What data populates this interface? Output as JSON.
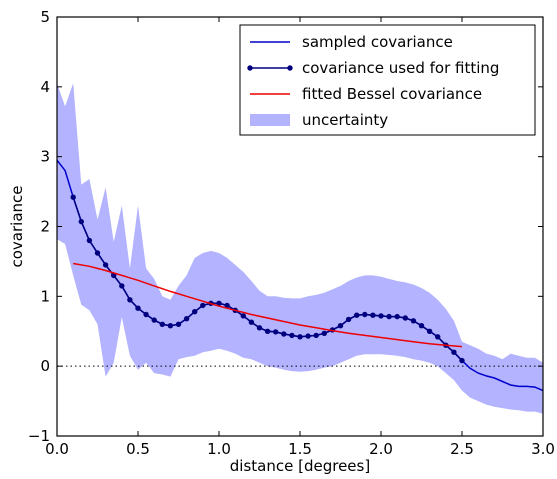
{
  "chart_data": {
    "type": "line",
    "title": "",
    "xlabel": "distance [degrees]",
    "ylabel": "covariance",
    "xlim": [
      0.0,
      3.0
    ],
    "ylim": [
      -1,
      5
    ],
    "xticks": [
      "0.0",
      "0.5",
      "1.0",
      "1.5",
      "2.0",
      "2.5",
      "3.0"
    ],
    "yticks": [
      "−1",
      "0",
      "1",
      "2",
      "3",
      "4",
      "5"
    ],
    "grid": false,
    "legend_position": "top-right",
    "reference_line": {
      "y": 0,
      "style": "dotted",
      "color": "#000000"
    },
    "colors": {
      "sampled": "#0000cc",
      "fitting": "#00007f",
      "bessel": "#ee0000",
      "uncertainty": "#b3b3ff"
    },
    "legend": [
      {
        "key": "sampled",
        "label": "sampled covariance"
      },
      {
        "key": "fitting",
        "label": "covariance used for fitting"
      },
      {
        "key": "bessel",
        "label": "fitted Bessel covariance"
      },
      {
        "key": "uncertainty",
        "label": "uncertainty"
      }
    ],
    "series": {
      "sampled": {
        "name": "sampled covariance",
        "x": [
          0.0,
          0.05,
          0.1,
          0.15,
          0.2,
          0.25,
          0.3,
          0.35,
          0.4,
          0.45,
          0.5,
          0.55,
          0.6,
          0.65,
          0.7,
          0.75,
          0.8,
          0.85,
          0.9,
          0.95,
          1.0,
          1.05,
          1.1,
          1.15,
          1.2,
          1.25,
          1.3,
          1.35,
          1.4,
          1.45,
          1.5,
          1.55,
          1.6,
          1.65,
          1.7,
          1.75,
          1.8,
          1.85,
          1.9,
          1.95,
          2.0,
          2.05,
          2.1,
          2.15,
          2.2,
          2.25,
          2.3,
          2.35,
          2.4,
          2.45,
          2.5,
          2.55,
          2.6,
          2.65,
          2.7,
          2.75,
          2.8,
          2.85,
          2.9,
          2.95,
          3.0
        ],
        "y": [
          2.95,
          2.8,
          2.42,
          2.07,
          1.8,
          1.62,
          1.45,
          1.3,
          1.15,
          0.95,
          0.83,
          0.74,
          0.66,
          0.6,
          0.58,
          0.6,
          0.68,
          0.78,
          0.87,
          0.9,
          0.9,
          0.87,
          0.8,
          0.72,
          0.63,
          0.55,
          0.5,
          0.49,
          0.46,
          0.44,
          0.42,
          0.43,
          0.44,
          0.47,
          0.52,
          0.58,
          0.67,
          0.73,
          0.74,
          0.73,
          0.72,
          0.71,
          0.71,
          0.69,
          0.65,
          0.58,
          0.5,
          0.42,
          0.3,
          0.2,
          0.08,
          -0.03,
          -0.1,
          -0.14,
          -0.17,
          -0.22,
          -0.27,
          -0.29,
          -0.29,
          -0.3,
          -0.35
        ]
      },
      "fitting": {
        "name": "covariance used for fitting",
        "x": [
          0.1,
          0.15,
          0.2,
          0.25,
          0.3,
          0.35,
          0.4,
          0.45,
          0.5,
          0.55,
          0.6,
          0.65,
          0.7,
          0.75,
          0.8,
          0.85,
          0.9,
          0.95,
          1.0,
          1.05,
          1.1,
          1.15,
          1.2,
          1.25,
          1.3,
          1.35,
          1.4,
          1.45,
          1.5,
          1.55,
          1.6,
          1.65,
          1.7,
          1.75,
          1.8,
          1.85,
          1.9,
          1.95,
          2.0,
          2.05,
          2.1,
          2.15,
          2.2,
          2.25,
          2.3,
          2.35,
          2.4,
          2.45,
          2.5
        ],
        "y": [
          2.42,
          2.07,
          1.8,
          1.62,
          1.45,
          1.3,
          1.15,
          0.95,
          0.83,
          0.74,
          0.66,
          0.6,
          0.58,
          0.6,
          0.68,
          0.78,
          0.87,
          0.9,
          0.9,
          0.87,
          0.8,
          0.72,
          0.63,
          0.55,
          0.5,
          0.49,
          0.46,
          0.44,
          0.42,
          0.43,
          0.44,
          0.47,
          0.52,
          0.58,
          0.67,
          0.73,
          0.74,
          0.73,
          0.72,
          0.71,
          0.71,
          0.69,
          0.65,
          0.58,
          0.5,
          0.42,
          0.3,
          0.2,
          0.08
        ]
      },
      "bessel": {
        "name": "fitted Bessel covariance",
        "x": [
          0.1,
          0.2,
          0.3,
          0.4,
          0.5,
          0.6,
          0.7,
          0.8,
          0.9,
          1.0,
          1.1,
          1.2,
          1.3,
          1.4,
          1.5,
          1.6,
          1.7,
          1.8,
          1.9,
          2.0,
          2.1,
          2.2,
          2.3,
          2.4,
          2.5
        ],
        "y": [
          1.47,
          1.43,
          1.37,
          1.3,
          1.23,
          1.15,
          1.07,
          1.0,
          0.93,
          0.86,
          0.8,
          0.74,
          0.69,
          0.64,
          0.59,
          0.55,
          0.51,
          0.47,
          0.44,
          0.41,
          0.38,
          0.35,
          0.32,
          0.3,
          0.28
        ]
      },
      "uncertainty": {
        "name": "uncertainty",
        "x": [
          0.0,
          0.05,
          0.1,
          0.15,
          0.2,
          0.25,
          0.3,
          0.35,
          0.4,
          0.45,
          0.5,
          0.55,
          0.6,
          0.65,
          0.7,
          0.75,
          0.8,
          0.85,
          0.9,
          0.95,
          1.0,
          1.05,
          1.1,
          1.15,
          1.2,
          1.25,
          1.3,
          1.35,
          1.4,
          1.45,
          1.5,
          1.55,
          1.6,
          1.65,
          1.7,
          1.75,
          1.8,
          1.85,
          1.9,
          1.95,
          2.0,
          2.05,
          2.1,
          2.15,
          2.2,
          2.25,
          2.3,
          2.35,
          2.4,
          2.45,
          2.5,
          2.55,
          2.6,
          2.65,
          2.7,
          2.75,
          2.8,
          2.85,
          2.9,
          2.95,
          3.0
        ],
        "upper": [
          4.05,
          3.72,
          4.05,
          2.6,
          2.68,
          2.1,
          2.56,
          1.78,
          2.3,
          1.4,
          2.3,
          1.4,
          1.25,
          1.0,
          0.95,
          1.15,
          1.3,
          1.55,
          1.62,
          1.65,
          1.62,
          1.55,
          1.45,
          1.35,
          1.22,
          1.08,
          1.0,
          1.0,
          0.98,
          0.97,
          0.97,
          1.0,
          1.02,
          1.05,
          1.1,
          1.15,
          1.22,
          1.27,
          1.3,
          1.3,
          1.28,
          1.25,
          1.22,
          1.2,
          1.17,
          1.12,
          1.05,
          0.95,
          0.82,
          0.65,
          0.35,
          0.3,
          0.25,
          0.18,
          0.15,
          0.1,
          0.18,
          0.15,
          0.12,
          0.12,
          0.05
        ],
        "lower": [
          1.82,
          1.75,
          1.3,
          0.88,
          0.8,
          0.6,
          -0.15,
          0.05,
          0.7,
          0.15,
          -0.05,
          0.05,
          -0.1,
          -0.12,
          -0.15,
          0.1,
          0.13,
          0.15,
          0.2,
          0.22,
          0.25,
          0.22,
          0.18,
          0.12,
          0.1,
          0.05,
          0.0,
          -0.02,
          -0.05,
          -0.07,
          -0.08,
          -0.07,
          -0.05,
          -0.02,
          0.0,
          0.05,
          0.1,
          0.15,
          0.17,
          0.17,
          0.17,
          0.16,
          0.15,
          0.13,
          0.1,
          0.08,
          0.05,
          0.0,
          -0.1,
          -0.2,
          -0.35,
          -0.45,
          -0.5,
          -0.55,
          -0.58,
          -0.6,
          -0.62,
          -0.63,
          -0.65,
          -0.65,
          -0.68
        ]
      }
    }
  }
}
